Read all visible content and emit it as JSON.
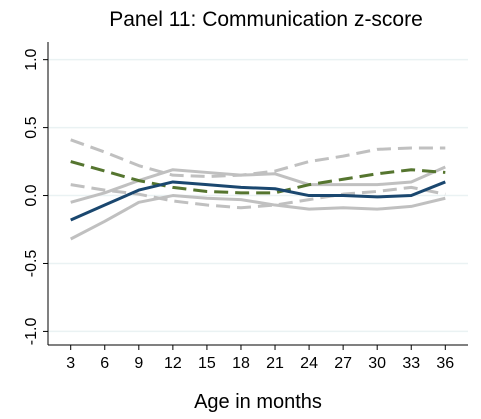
{
  "chart_data": {
    "type": "line",
    "title": "Panel 11: Communication z-score",
    "x_label": "Age in months",
    "x": [
      3,
      6,
      9,
      12,
      15,
      18,
      21,
      24,
      27,
      30,
      33,
      36
    ],
    "xlim": [
      1,
      38
    ],
    "xticks": [
      3,
      6,
      9,
      12,
      15,
      18,
      21,
      24,
      27,
      30,
      33,
      36
    ],
    "ylim": [
      -1.1,
      1.13
    ],
    "yticks": [
      {
        "value": -1,
        "label": "-1.0"
      },
      {
        "value": -0.5,
        "label": "-0.5"
      },
      {
        "value": 0,
        "label": "0.0"
      },
      {
        "value": 0.5,
        "label": "0.5"
      },
      {
        "value": 1,
        "label": "1.0"
      }
    ],
    "grid": true,
    "series": [
      {
        "color": "#c0c0c0",
        "dashed": true,
        "values": [
          0.41,
          0.32,
          0.22,
          0.15,
          0.14,
          0.15,
          0.18,
          0.25,
          0.29,
          0.34,
          0.35,
          0.35
        ]
      },
      {
        "color": "#c0c0c0",
        "dashed": true,
        "values": [
          0.08,
          0.04,
          0.01,
          -0.04,
          -0.07,
          -0.09,
          -0.07,
          -0.03,
          0.01,
          0.03,
          0.06,
          0.01
        ]
      },
      {
        "color": "#c0c0c0",
        "dashed": false,
        "values": [
          -0.05,
          0.02,
          0.11,
          0.19,
          0.17,
          0.15,
          0.16,
          0.08,
          0.08,
          0.08,
          0.1,
          0.21
        ]
      },
      {
        "color": "#c0c0c0",
        "dashed": false,
        "values": [
          -0.32,
          -0.19,
          -0.05,
          0.0,
          -0.02,
          -0.03,
          -0.07,
          -0.1,
          -0.09,
          -0.1,
          -0.08,
          -0.02
        ]
      },
      {
        "color": "#55752f",
        "dashed": true,
        "values": [
          0.25,
          0.18,
          0.11,
          0.06,
          0.03,
          0.02,
          0.02,
          0.08,
          0.12,
          0.16,
          0.19,
          0.17
        ]
      },
      {
        "color": "#1a476f",
        "dashed": false,
        "values": [
          -0.18,
          -0.07,
          0.04,
          0.1,
          0.08,
          0.06,
          0.05,
          0.0,
          0.0,
          -0.01,
          0.0,
          0.1
        ]
      }
    ]
  }
}
